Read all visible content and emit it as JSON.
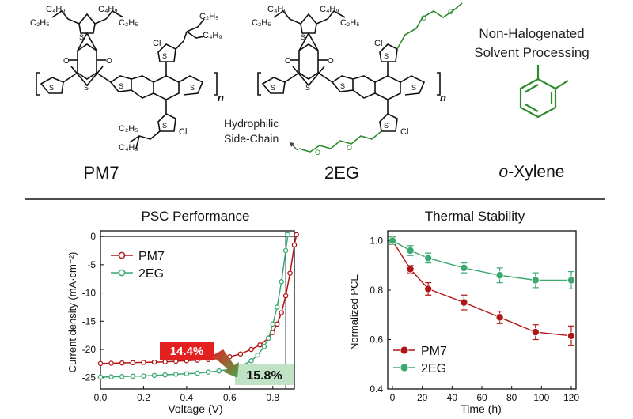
{
  "molecules": {
    "pm7": {
      "name": "PM7",
      "labels": {
        "c4h9_a": "C₄H₉",
        "c2h5_a": "C₂H₅",
        "c4h9_b": "C₄H₉",
        "c2h5_b": "C₂H₅",
        "c2h5_c": "C₂H₅",
        "c4h9_c": "C₄H₉",
        "c2h5_d": "C₂H₅",
        "c4h9_d": "C₄H₉",
        "cl_top": "Cl",
        "cl_bottom": "Cl",
        "n": "n"
      }
    },
    "eg2": {
      "name": "2EG",
      "labels": {
        "c4h9_a": "C₄H₉",
        "c2h5_a": "C₂H₅",
        "c4h9_b": "C₄H₉",
        "c2h5_b": "C₂H₅",
        "cl_top": "Cl",
        "cl_bottom": "Cl",
        "n": "n"
      }
    },
    "xylene": {
      "name_italic": "o",
      "name_rest": "-Xylene"
    }
  },
  "annotations": {
    "side_chain_line1": "Hydrophilic",
    "side_chain_line2": "Side-Chain",
    "solvent_line1": "Non-Halogenated",
    "solvent_line2": "Solvent Processing"
  },
  "colors": {
    "pm7": "#b01515",
    "eg2": "#3aa870",
    "green_chain": "#2e8b2e",
    "pm7_badge": "#e32020",
    "eg2_badge": "#bfe3c4"
  },
  "chart_data": [
    {
      "type": "line",
      "title": "PSC Performance",
      "xlabel": "Voltage (V)",
      "ylabel": "Current density (mA·cm⁻²)",
      "xlim": [
        0.0,
        0.9
      ],
      "ylim": [
        -27,
        1
      ],
      "xticks": [
        "0.0",
        "0.2",
        "0.4",
        "0.6",
        "0.8"
      ],
      "yticks": [
        "0",
        "-5",
        "-10",
        "-15",
        "-20",
        "-25"
      ],
      "legend": "top-left",
      "series": [
        {
          "name": "PM7",
          "x": [
            0.0,
            0.05,
            0.1,
            0.15,
            0.2,
            0.25,
            0.3,
            0.35,
            0.4,
            0.45,
            0.5,
            0.55,
            0.6,
            0.65,
            0.7,
            0.74,
            0.78,
            0.8,
            0.82,
            0.84,
            0.86,
            0.88,
            0.9,
            0.91
          ],
          "y": [
            -22.5,
            -22.45,
            -22.4,
            -22.35,
            -22.3,
            -22.25,
            -22.2,
            -22.1,
            -22.0,
            -21.9,
            -21.8,
            -21.6,
            -21.3,
            -20.8,
            -20.0,
            -19.2,
            -18.0,
            -17.0,
            -15.5,
            -13.5,
            -10.5,
            -6.5,
            -1.5,
            0.3
          ]
        },
        {
          "name": "2EG",
          "x": [
            0.0,
            0.05,
            0.1,
            0.15,
            0.2,
            0.25,
            0.3,
            0.35,
            0.4,
            0.45,
            0.5,
            0.55,
            0.6,
            0.65,
            0.7,
            0.73,
            0.76,
            0.78,
            0.8,
            0.82,
            0.84,
            0.86,
            0.87
          ],
          "y": [
            -24.9,
            -24.85,
            -24.8,
            -24.75,
            -24.7,
            -24.6,
            -24.5,
            -24.4,
            -24.3,
            -24.2,
            -24.0,
            -23.8,
            -23.5,
            -23.0,
            -22.0,
            -21.0,
            -19.5,
            -18.0,
            -15.5,
            -12.5,
            -8.0,
            -2.5,
            0.3
          ]
        }
      ],
      "annotations": [
        {
          "text": "14.4%",
          "series": "PM7"
        },
        {
          "text": "15.8%",
          "series": "2EG"
        }
      ]
    },
    {
      "type": "line",
      "title": "Thermal Stability",
      "xlabel": "Time (h)",
      "ylabel": "Normalized PCE",
      "xlim": [
        0,
        120
      ],
      "ylim": [
        0.4,
        1.0
      ],
      "xticks": [
        "0",
        "20",
        "40",
        "60",
        "80",
        "100",
        "120"
      ],
      "yticks": [
        "0.4",
        "0.6",
        "0.8",
        "1.0"
      ],
      "legend": "bottom-right",
      "series": [
        {
          "name": "PM7",
          "x": [
            0,
            12,
            24,
            48,
            72,
            96,
            120
          ],
          "y": [
            1.0,
            0.885,
            0.805,
            0.75,
            0.69,
            0.63,
            0.615
          ],
          "err": [
            0.015,
            0.015,
            0.025,
            0.03,
            0.025,
            0.03,
            0.04
          ]
        },
        {
          "name": "2EG",
          "x": [
            0,
            12,
            24,
            48,
            72,
            96,
            120
          ],
          "y": [
            1.0,
            0.96,
            0.93,
            0.89,
            0.86,
            0.84,
            0.84
          ],
          "err": [
            0.015,
            0.02,
            0.02,
            0.02,
            0.03,
            0.03,
            0.035
          ]
        }
      ]
    }
  ]
}
